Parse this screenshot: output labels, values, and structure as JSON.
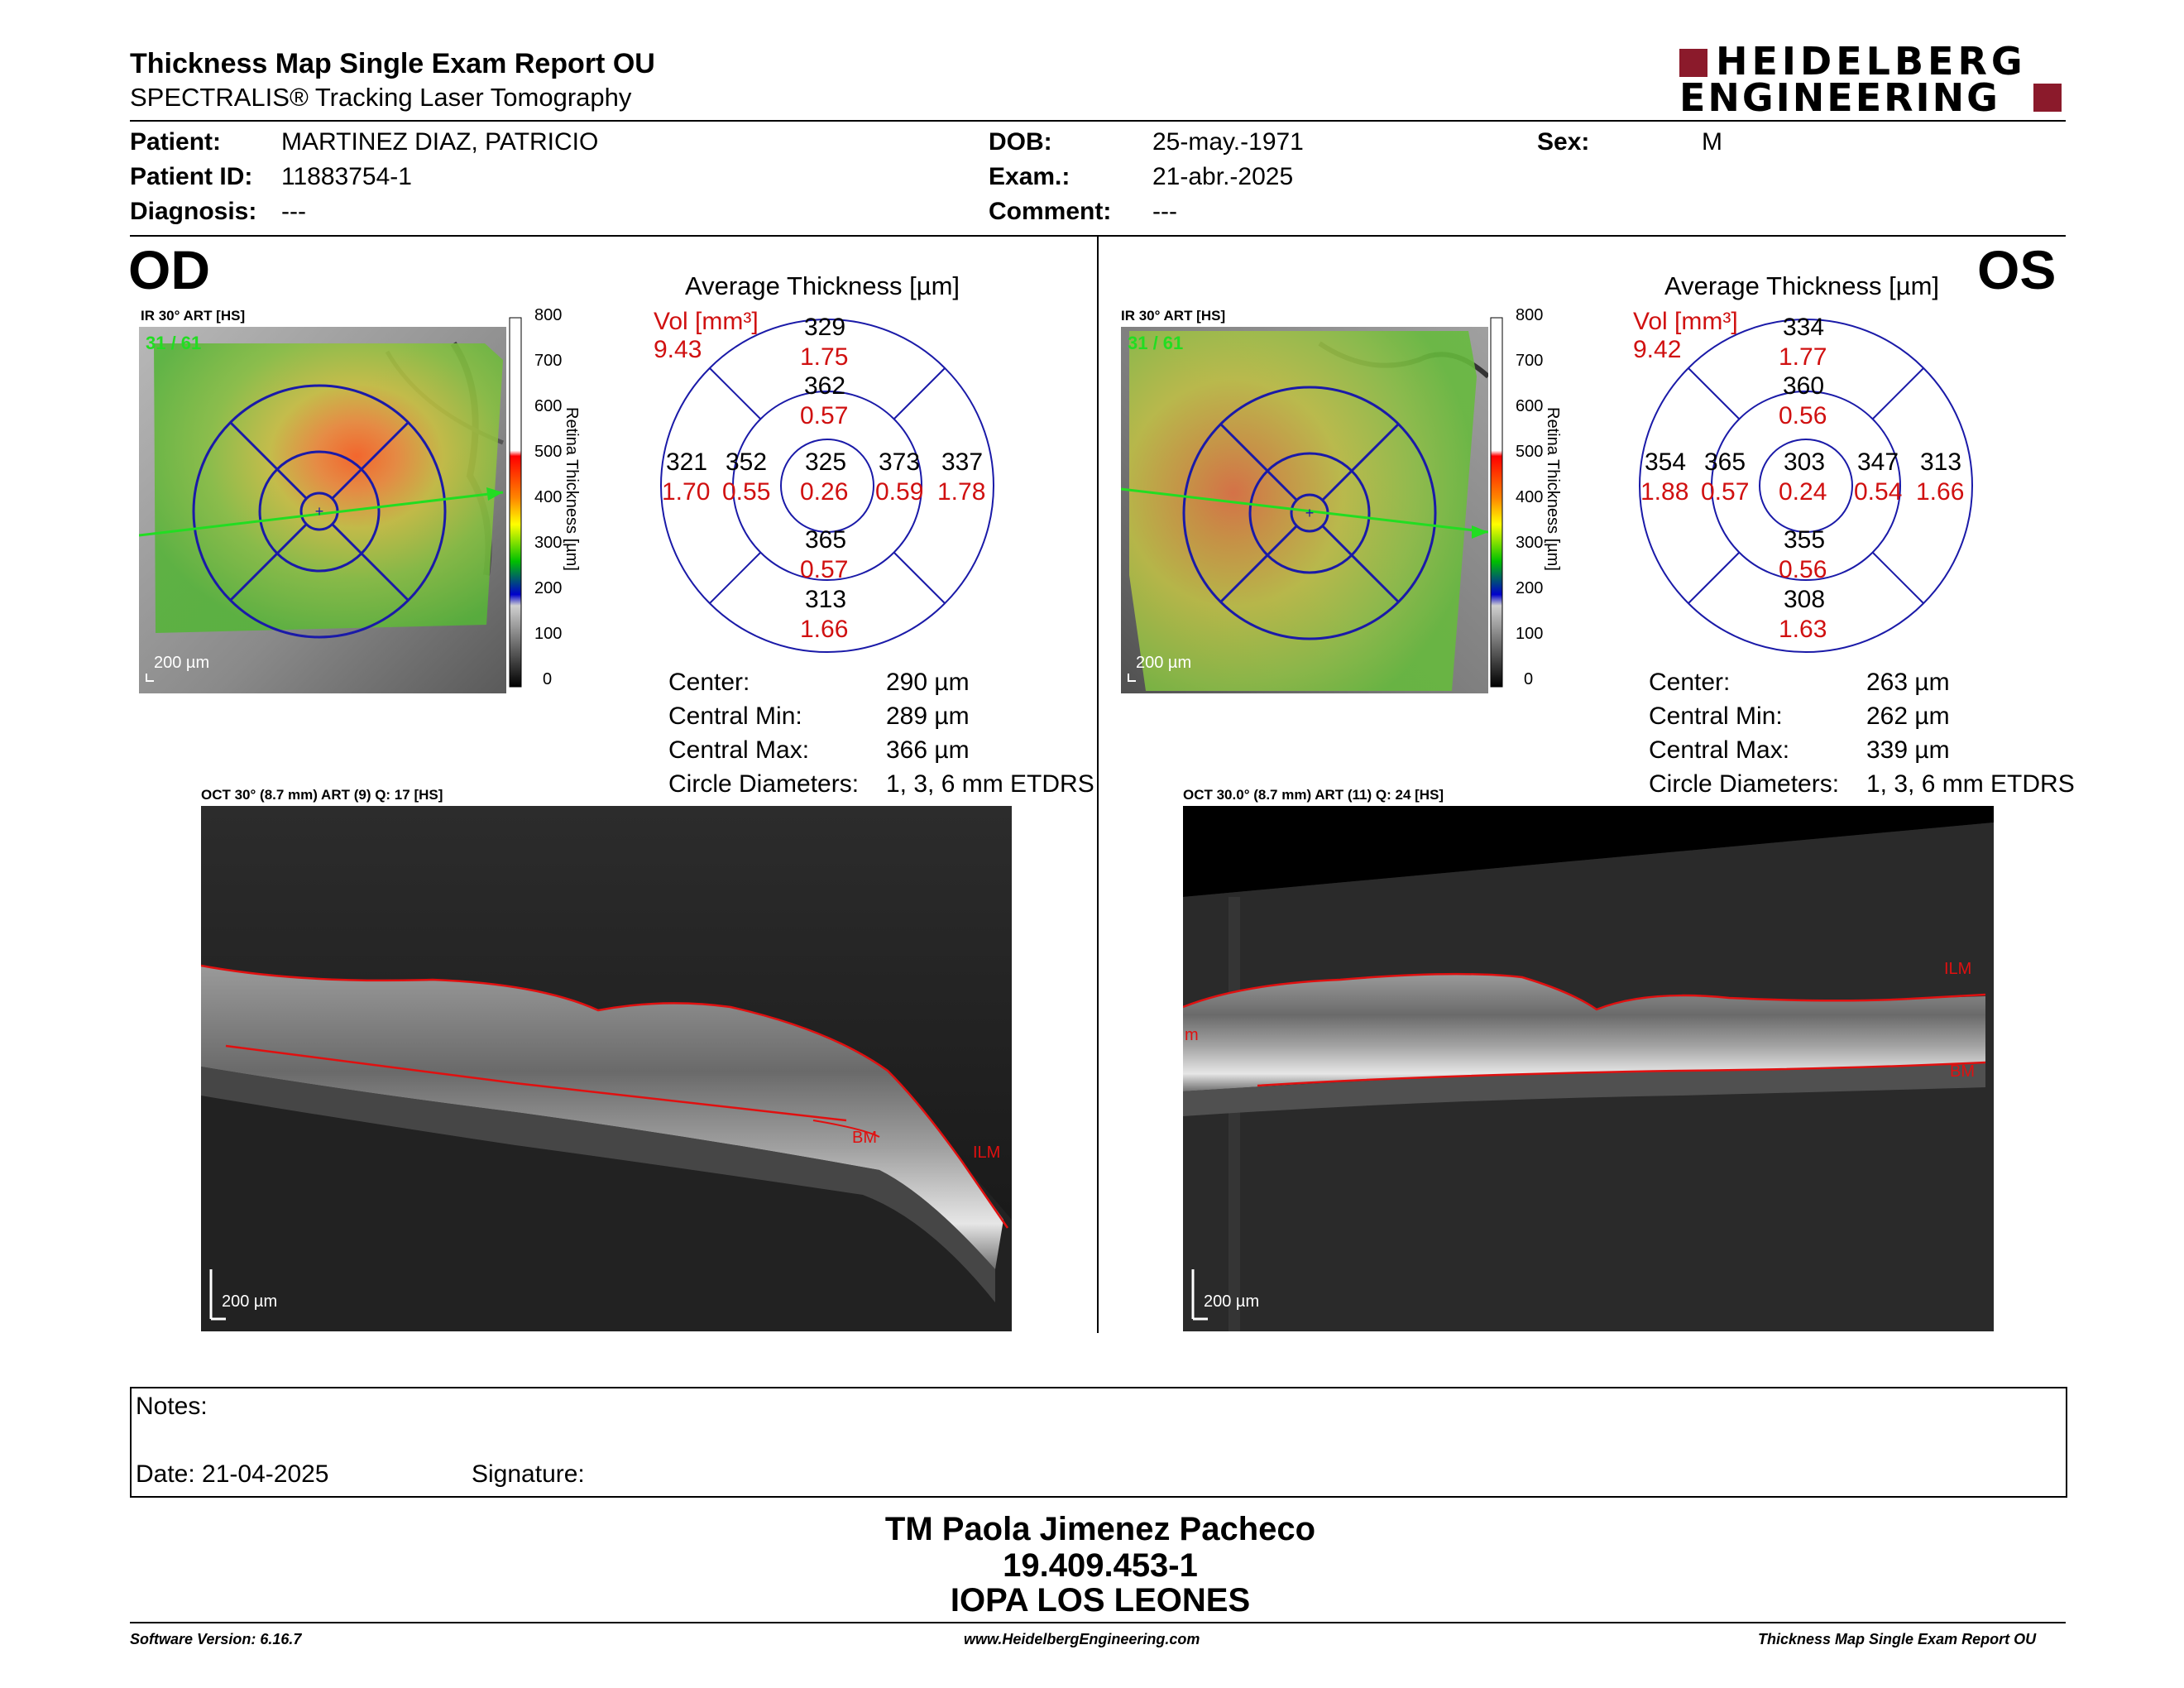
{
  "header": {
    "title": "Thickness Map Single Exam Report OU",
    "subtitle": "SPECTRALIS® Tracking Laser Tomography",
    "logo_line1": "HEIDELBERG",
    "logo_line2": "ENGINEERING",
    "brand_color": "#8b1a2b"
  },
  "patient": {
    "patient_label": "Patient:",
    "patient_value": "MARTINEZ DIAZ, PATRICIO",
    "id_label": "Patient ID:",
    "id_value": "11883754-1",
    "diag_label": "Diagnosis:",
    "diag_value": "---",
    "dob_label": "DOB:",
    "dob_value": "25-may.-1971",
    "exam_label": "Exam.:",
    "exam_value": "21-abr.-2025",
    "comment_label": "Comment:",
    "comment_value": "---",
    "sex_label": "Sex:",
    "sex_value": "M"
  },
  "od": {
    "eye": "OD",
    "ir_caption": "IR 30° ART [HS]",
    "frame_counter": "31 / 61",
    "scale_label": "200 µm",
    "avg_title": "Average Thickness [µm]",
    "vol_label": "Vol [mm³]",
    "vol_value": "9.43",
    "grid": {
      "outer_sup": "329",
      "outer_sup_vol": "1.75",
      "inner_sup": "362",
      "inner_sup_vol": "0.57",
      "outer_temp": "321",
      "outer_temp_vol": "1.70",
      "inner_temp": "352",
      "inner_temp_vol": "0.55",
      "center": "325",
      "center_vol": "0.26",
      "inner_nas": "373",
      "inner_nas_vol": "0.59",
      "outer_nas": "337",
      "outer_nas_vol": "1.78",
      "inner_inf": "365",
      "inner_inf_vol": "0.57",
      "outer_inf": "313",
      "outer_inf_vol": "1.66"
    },
    "stats": {
      "center_label": "Center:",
      "center_value": "290 µm",
      "min_label": "Central Min:",
      "min_value": "289 µm",
      "max_label": "Central Max:",
      "max_value": "366 µm",
      "diam_label": "Circle Diameters:",
      "diam_value": "1, 3, 6 mm ETDRS"
    },
    "oct_caption": "OCT 30° (8.7 mm) ART (9) Q: 17 [HS]",
    "oct_scale": "200 µm",
    "ilm": "ILM",
    "bm": "BM"
  },
  "os": {
    "eye": "OS",
    "ir_caption": "IR 30° ART [HS]",
    "frame_counter": "31 / 61",
    "scale_label": "200 µm",
    "avg_title": "Average Thickness [µm]",
    "vol_label": "Vol [mm³]",
    "vol_value": "9.42",
    "grid": {
      "outer_sup": "334",
      "outer_sup_vol": "1.77",
      "inner_sup": "360",
      "inner_sup_vol": "0.56",
      "outer_temp": "354",
      "outer_temp_vol": "1.88",
      "inner_temp": "365",
      "inner_temp_vol": "0.57",
      "center": "303",
      "center_vol": "0.24",
      "inner_nas": "347",
      "inner_nas_vol": "0.54",
      "outer_nas": "313",
      "outer_nas_vol": "1.66",
      "inner_inf": "355",
      "inner_inf_vol": "0.56",
      "outer_inf": "308",
      "outer_inf_vol": "1.63"
    },
    "stats": {
      "center_label": "Center:",
      "center_value": "263 µm",
      "min_label": "Central Min:",
      "min_value": "262 µm",
      "max_label": "Central Max:",
      "max_value": "339 µm",
      "diam_label": "Circle Diameters:",
      "diam_value": "1, 3, 6 mm ETDRS"
    },
    "oct_caption": "OCT 30.0° (8.7 mm) ART (11) Q: 24 [HS]",
    "oct_scale": "200 µm",
    "ilm": "ILM",
    "bm": "BM",
    "left_marker": "m"
  },
  "colorbar": {
    "ticks": [
      "800",
      "700",
      "600",
      "500",
      "400",
      "300",
      "200",
      "100",
      "0"
    ],
    "title": "Retina  Thickness [µm]"
  },
  "notes": {
    "notes_label": "Notes:",
    "date_label": "Date: 21-04-2025",
    "signature_label": "Signature:"
  },
  "signature": {
    "name": "TM Paola Jimenez Pacheco",
    "rut": "19.409.453-1",
    "institution": "IOPA LOS LEONES"
  },
  "footer": {
    "software": "Software Version: 6.16.7",
    "website": "www.HeidelbergEngineering.com",
    "report": "Thickness Map Single Exam Report OU"
  },
  "colors": {
    "grid_blue": "#1a1aa8",
    "volume_red": "#d01010",
    "seg_red": "#e01010",
    "scan_green": "#22dd22"
  }
}
